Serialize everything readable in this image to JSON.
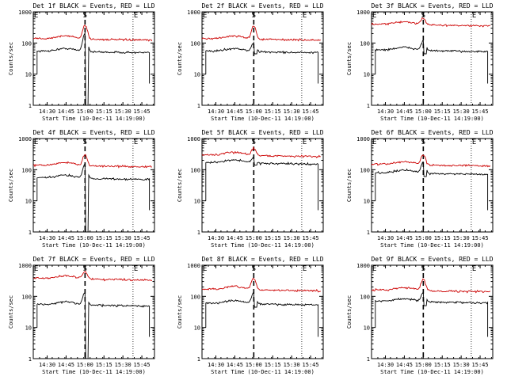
{
  "chart_data": [
    {
      "type": "line",
      "title": "Det 1f BLACK = Events, RED = LLD",
      "xlabel": "Start Time (10-Dec-11 14:19:00)",
      "ylabel": "Counts/sec",
      "yscale": "log",
      "ylim": [
        1,
        1000
      ],
      "x_ticks": [
        "14:30",
        "14:45",
        "15:00",
        "15:15",
        "15:30",
        "15:45"
      ],
      "y_ticks": [
        "1",
        "10",
        "100",
        "1000"
      ],
      "markers": [
        {
          "label": "E",
          "x": "14:19"
        },
        {
          "label": "S",
          "x": "15:00"
        },
        {
          "label": "E",
          "x": "15:38"
        }
      ],
      "series": [
        {
          "color": "#000000",
          "start": "14:22",
          "end": "15:51",
          "base": 55,
          "peak": 200,
          "dip": 1
        },
        {
          "color": "#cc0000",
          "start": "14:19",
          "end": "15:53",
          "base": 140,
          "peak": 380
        }
      ]
    },
    {
      "type": "line",
      "title": "Det 2f BLACK = Events, RED = LLD",
      "xlabel": "Start Time (10-Dec-11 14:19:00)",
      "ylabel": "Counts/sec",
      "yscale": "log",
      "ylim": [
        1,
        1000
      ],
      "x_ticks": [
        "14:30",
        "14:45",
        "15:00",
        "15:15",
        "15:30",
        "15:45"
      ],
      "y_ticks": [
        "1",
        "10",
        "100",
        "1000"
      ],
      "markers": [
        {
          "label": "E",
          "x": "14:19"
        },
        {
          "label": "S",
          "x": "15:00"
        },
        {
          "label": "E",
          "x": "15:38"
        }
      ],
      "series": [
        {
          "color": "#000000",
          "start": "14:22",
          "end": "15:51",
          "base": 55,
          "peak": 100,
          "dip": 45
        },
        {
          "color": "#cc0000",
          "start": "14:19",
          "end": "15:53",
          "base": 140,
          "peak": 350
        }
      ]
    },
    {
      "type": "line",
      "title": "Det 3f BLACK = Events, RED = LLD",
      "xlabel": "Start Time (10-Dec-11 14:19:00)",
      "ylabel": "Counts/sec",
      "yscale": "log",
      "ylim": [
        1,
        1000
      ],
      "x_ticks": [
        "14:30",
        "14:45",
        "15:00",
        "15:15",
        "15:30",
        "15:45"
      ],
      "y_ticks": [
        "1",
        "10",
        "100",
        "1000"
      ],
      "markers": [
        {
          "label": "E",
          "x": "14:19"
        },
        {
          "label": "S",
          "x": "15:00"
        },
        {
          "label": "E",
          "x": "15:38"
        }
      ],
      "series": [
        {
          "color": "#000000",
          "start": "14:22",
          "end": "15:51",
          "base": 60,
          "peak": 120,
          "dip": 45
        },
        {
          "color": "#cc0000",
          "start": "14:19",
          "end": "15:53",
          "base": 400,
          "peak": 650
        }
      ]
    },
    {
      "type": "line",
      "title": "Det 4f BLACK = Events, RED = LLD",
      "xlabel": "Start Time (10-Dec-11 14:19:00)",
      "ylabel": "Counts/sec",
      "yscale": "log",
      "ylim": [
        1,
        1000
      ],
      "x_ticks": [
        "14:30",
        "14:45",
        "15:00",
        "15:15",
        "15:30",
        "15:45"
      ],
      "y_ticks": [
        "1",
        "10",
        "100",
        "1000"
      ],
      "markers": [
        {
          "label": "E",
          "x": "14:19"
        },
        {
          "label": "S",
          "x": "15:00"
        },
        {
          "label": "E",
          "x": "15:38"
        }
      ],
      "series": [
        {
          "color": "#000000",
          "start": "14:22",
          "end": "15:51",
          "base": 55,
          "peak": 150,
          "dip": 1
        },
        {
          "color": "#cc0000",
          "start": "14:19",
          "end": "15:53",
          "base": 140,
          "peak": 300
        }
      ]
    },
    {
      "type": "line",
      "title": "Det 5f BLACK = Events, RED = LLD",
      "xlabel": "Start Time (10-Dec-11 14:19:00)",
      "ylabel": "Counts/sec",
      "yscale": "log",
      "ylim": [
        1,
        1000
      ],
      "x_ticks": [
        "14:30",
        "14:45",
        "15:00",
        "15:15",
        "15:30",
        "15:45"
      ],
      "y_ticks": [
        "1",
        "10",
        "100",
        "1000"
      ],
      "markers": [
        {
          "label": "E",
          "x": "14:19"
        },
        {
          "label": "S",
          "x": "15:00"
        },
        {
          "label": "E",
          "x": "15:38"
        }
      ],
      "series": [
        {
          "color": "#000000",
          "start": "14:22",
          "end": "15:51",
          "base": 170,
          "peak": 250,
          "dip": 140
        },
        {
          "color": "#cc0000",
          "start": "14:19",
          "end": "15:53",
          "base": 300,
          "peak": 500
        }
      ]
    },
    {
      "type": "line",
      "title": "Det 6f BLACK = Events, RED = LLD",
      "xlabel": "Start Time (10-Dec-11 14:19:00)",
      "ylabel": "Counts/sec",
      "yscale": "log",
      "ylim": [
        1,
        1000
      ],
      "x_ticks": [
        "14:30",
        "14:45",
        "15:00",
        "15:15",
        "15:30",
        "15:45"
      ],
      "y_ticks": [
        "1",
        "10",
        "100",
        "1000"
      ],
      "markers": [
        {
          "label": "E",
          "x": "14:19"
        },
        {
          "label": "S",
          "x": "15:00"
        },
        {
          "label": "E",
          "x": "15:38"
        }
      ],
      "series": [
        {
          "color": "#000000",
          "start": "14:22",
          "end": "15:51",
          "base": 80,
          "peak": 180,
          "dip": 60
        },
        {
          "color": "#cc0000",
          "start": "14:19",
          "end": "15:53",
          "base": 150,
          "peak": 300
        }
      ]
    },
    {
      "type": "line",
      "title": "Det 7f BLACK = Events, RED = LLD",
      "xlabel": "Start Time (10-Dec-11 14:19:00)",
      "ylabel": "Counts/sec",
      "yscale": "log",
      "ylim": [
        1,
        1000
      ],
      "x_ticks": [
        "14:30",
        "14:45",
        "15:00",
        "15:15",
        "15:30",
        "15:45"
      ],
      "y_ticks": [
        "1",
        "10",
        "100",
        "1000"
      ],
      "markers": [
        {
          "label": "E",
          "x": "14:19"
        },
        {
          "label": "S",
          "x": "15:00"
        },
        {
          "label": "E",
          "x": "15:38"
        }
      ],
      "series": [
        {
          "color": "#000000",
          "start": "14:22",
          "end": "15:51",
          "base": 55,
          "peak": 130,
          "dip": 1
        },
        {
          "color": "#cc0000",
          "start": "14:19",
          "end": "15:53",
          "base": 380,
          "peak": 650
        }
      ]
    },
    {
      "type": "line",
      "title": "Det 8f BLACK = Events, RED = LLD",
      "xlabel": "Start Time (10-Dec-11 14:19:00)",
      "ylabel": "Counts/sec",
      "yscale": "log",
      "ylim": [
        1,
        1000
      ],
      "x_ticks": [
        "14:30",
        "14:45",
        "15:00",
        "15:15",
        "15:30",
        "15:45"
      ],
      "y_ticks": [
        "1",
        "10",
        "100",
        "1000"
      ],
      "markers": [
        {
          "label": "E",
          "x": "14:19"
        },
        {
          "label": "S",
          "x": "15:00"
        },
        {
          "label": "E",
          "x": "15:38"
        }
      ],
      "series": [
        {
          "color": "#000000",
          "start": "14:22",
          "end": "15:51",
          "base": 60,
          "peak": 130,
          "dip": 45
        },
        {
          "color": "#cc0000",
          "start": "14:19",
          "end": "15:53",
          "base": 170,
          "peak": 380
        }
      ]
    },
    {
      "type": "line",
      "title": "Det 9f BLACK = Events, RED = LLD",
      "xlabel": "Start Time (10-Dec-11 14:19:00)",
      "ylabel": "Counts/sec",
      "yscale": "log",
      "ylim": [
        1,
        1000
      ],
      "x_ticks": [
        "14:30",
        "14:45",
        "15:00",
        "15:15",
        "15:30",
        "15:45"
      ],
      "y_ticks": [
        "1",
        "10",
        "100",
        "1000"
      ],
      "markers": [
        {
          "label": "E",
          "x": "14:19"
        },
        {
          "label": "S",
          "x": "15:00"
        },
        {
          "label": "E",
          "x": "15:38"
        }
      ],
      "series": [
        {
          "color": "#000000",
          "start": "14:22",
          "end": "15:51",
          "base": 70,
          "peak": 130,
          "dip": 50
        },
        {
          "color": "#cc0000",
          "start": "14:19",
          "end": "15:53",
          "base": 160,
          "peak": 350
        }
      ]
    }
  ]
}
